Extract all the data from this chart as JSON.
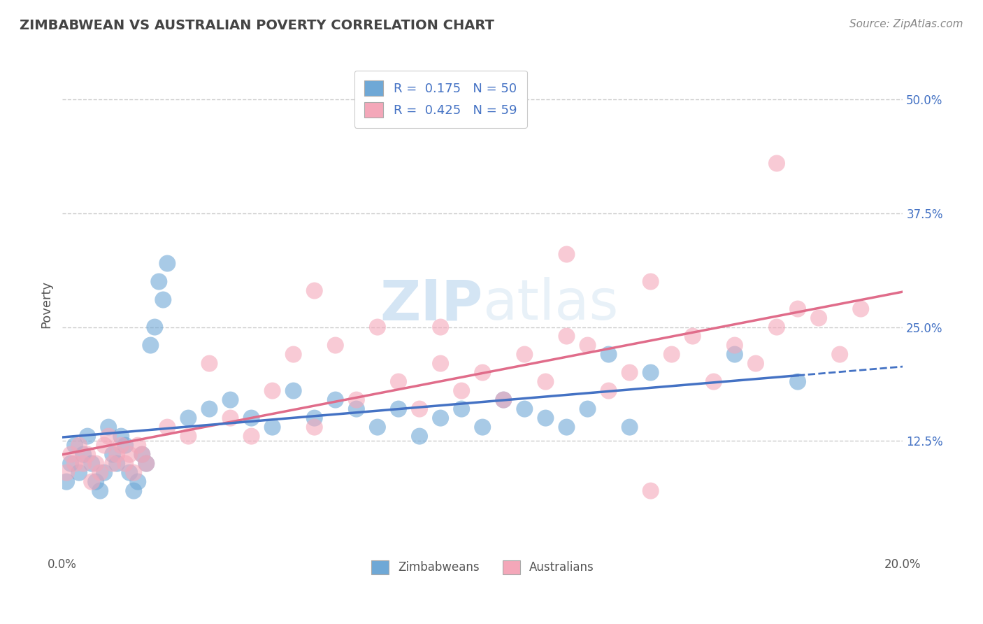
{
  "title": "ZIMBABWEAN VS AUSTRALIAN POVERTY CORRELATION CHART",
  "source": "Source: ZipAtlas.com",
  "xlabel": "",
  "ylabel": "Poverty",
  "xlim": [
    0.0,
    0.2
  ],
  "ylim": [
    0.0,
    0.55
  ],
  "legend_label1": "Zimbabweans",
  "legend_label2": "Australians",
  "blue_color": "#6fa8d6",
  "pink_color": "#f4a7b9",
  "blue_line_color": "#4472c4",
  "pink_line_color": "#e06c8a",
  "watermark_zip": "ZIP",
  "watermark_atlas": "atlas",
  "background_color": "#ffffff",
  "grid_color": "#cccccc",
  "R_zim": 0.175,
  "N_zim": 50,
  "R_aus": 0.425,
  "N_aus": 59,
  "zim_x": [
    0.001,
    0.002,
    0.003,
    0.004,
    0.005,
    0.006,
    0.007,
    0.008,
    0.009,
    0.01,
    0.011,
    0.012,
    0.013,
    0.014,
    0.015,
    0.016,
    0.017,
    0.018,
    0.019,
    0.02,
    0.021,
    0.022,
    0.023,
    0.024,
    0.025,
    0.03,
    0.035,
    0.04,
    0.045,
    0.05,
    0.055,
    0.06,
    0.065,
    0.07,
    0.075,
    0.08,
    0.085,
    0.09,
    0.095,
    0.1,
    0.105,
    0.11,
    0.115,
    0.12,
    0.125,
    0.13,
    0.135,
    0.14,
    0.16,
    0.175
  ],
  "zim_y": [
    0.08,
    0.1,
    0.12,
    0.09,
    0.11,
    0.13,
    0.1,
    0.08,
    0.07,
    0.09,
    0.14,
    0.11,
    0.1,
    0.13,
    0.12,
    0.09,
    0.07,
    0.08,
    0.11,
    0.1,
    0.23,
    0.25,
    0.3,
    0.28,
    0.32,
    0.15,
    0.16,
    0.17,
    0.15,
    0.14,
    0.18,
    0.15,
    0.17,
    0.16,
    0.14,
    0.16,
    0.13,
    0.15,
    0.16,
    0.14,
    0.17,
    0.16,
    0.15,
    0.14,
    0.16,
    0.22,
    0.14,
    0.2,
    0.22,
    0.19
  ],
  "aus_x": [
    0.001,
    0.002,
    0.003,
    0.004,
    0.005,
    0.006,
    0.007,
    0.008,
    0.009,
    0.01,
    0.011,
    0.012,
    0.013,
    0.014,
    0.015,
    0.016,
    0.017,
    0.018,
    0.019,
    0.02,
    0.025,
    0.03,
    0.035,
    0.04,
    0.045,
    0.05,
    0.055,
    0.06,
    0.065,
    0.07,
    0.075,
    0.08,
    0.085,
    0.09,
    0.095,
    0.1,
    0.105,
    0.11,
    0.115,
    0.12,
    0.125,
    0.13,
    0.135,
    0.14,
    0.145,
    0.15,
    0.155,
    0.16,
    0.165,
    0.17,
    0.175,
    0.18,
    0.185,
    0.19,
    0.12,
    0.14,
    0.06,
    0.09,
    0.17
  ],
  "aus_y": [
    0.09,
    0.11,
    0.1,
    0.12,
    0.1,
    0.11,
    0.08,
    0.1,
    0.09,
    0.12,
    0.13,
    0.1,
    0.11,
    0.12,
    0.1,
    0.11,
    0.09,
    0.12,
    0.11,
    0.1,
    0.14,
    0.13,
    0.21,
    0.15,
    0.13,
    0.18,
    0.22,
    0.14,
    0.23,
    0.17,
    0.25,
    0.19,
    0.16,
    0.21,
    0.18,
    0.2,
    0.17,
    0.22,
    0.19,
    0.24,
    0.23,
    0.18,
    0.2,
    0.07,
    0.22,
    0.24,
    0.19,
    0.23,
    0.21,
    0.25,
    0.27,
    0.26,
    0.22,
    0.27,
    0.33,
    0.3,
    0.29,
    0.25,
    0.43
  ]
}
